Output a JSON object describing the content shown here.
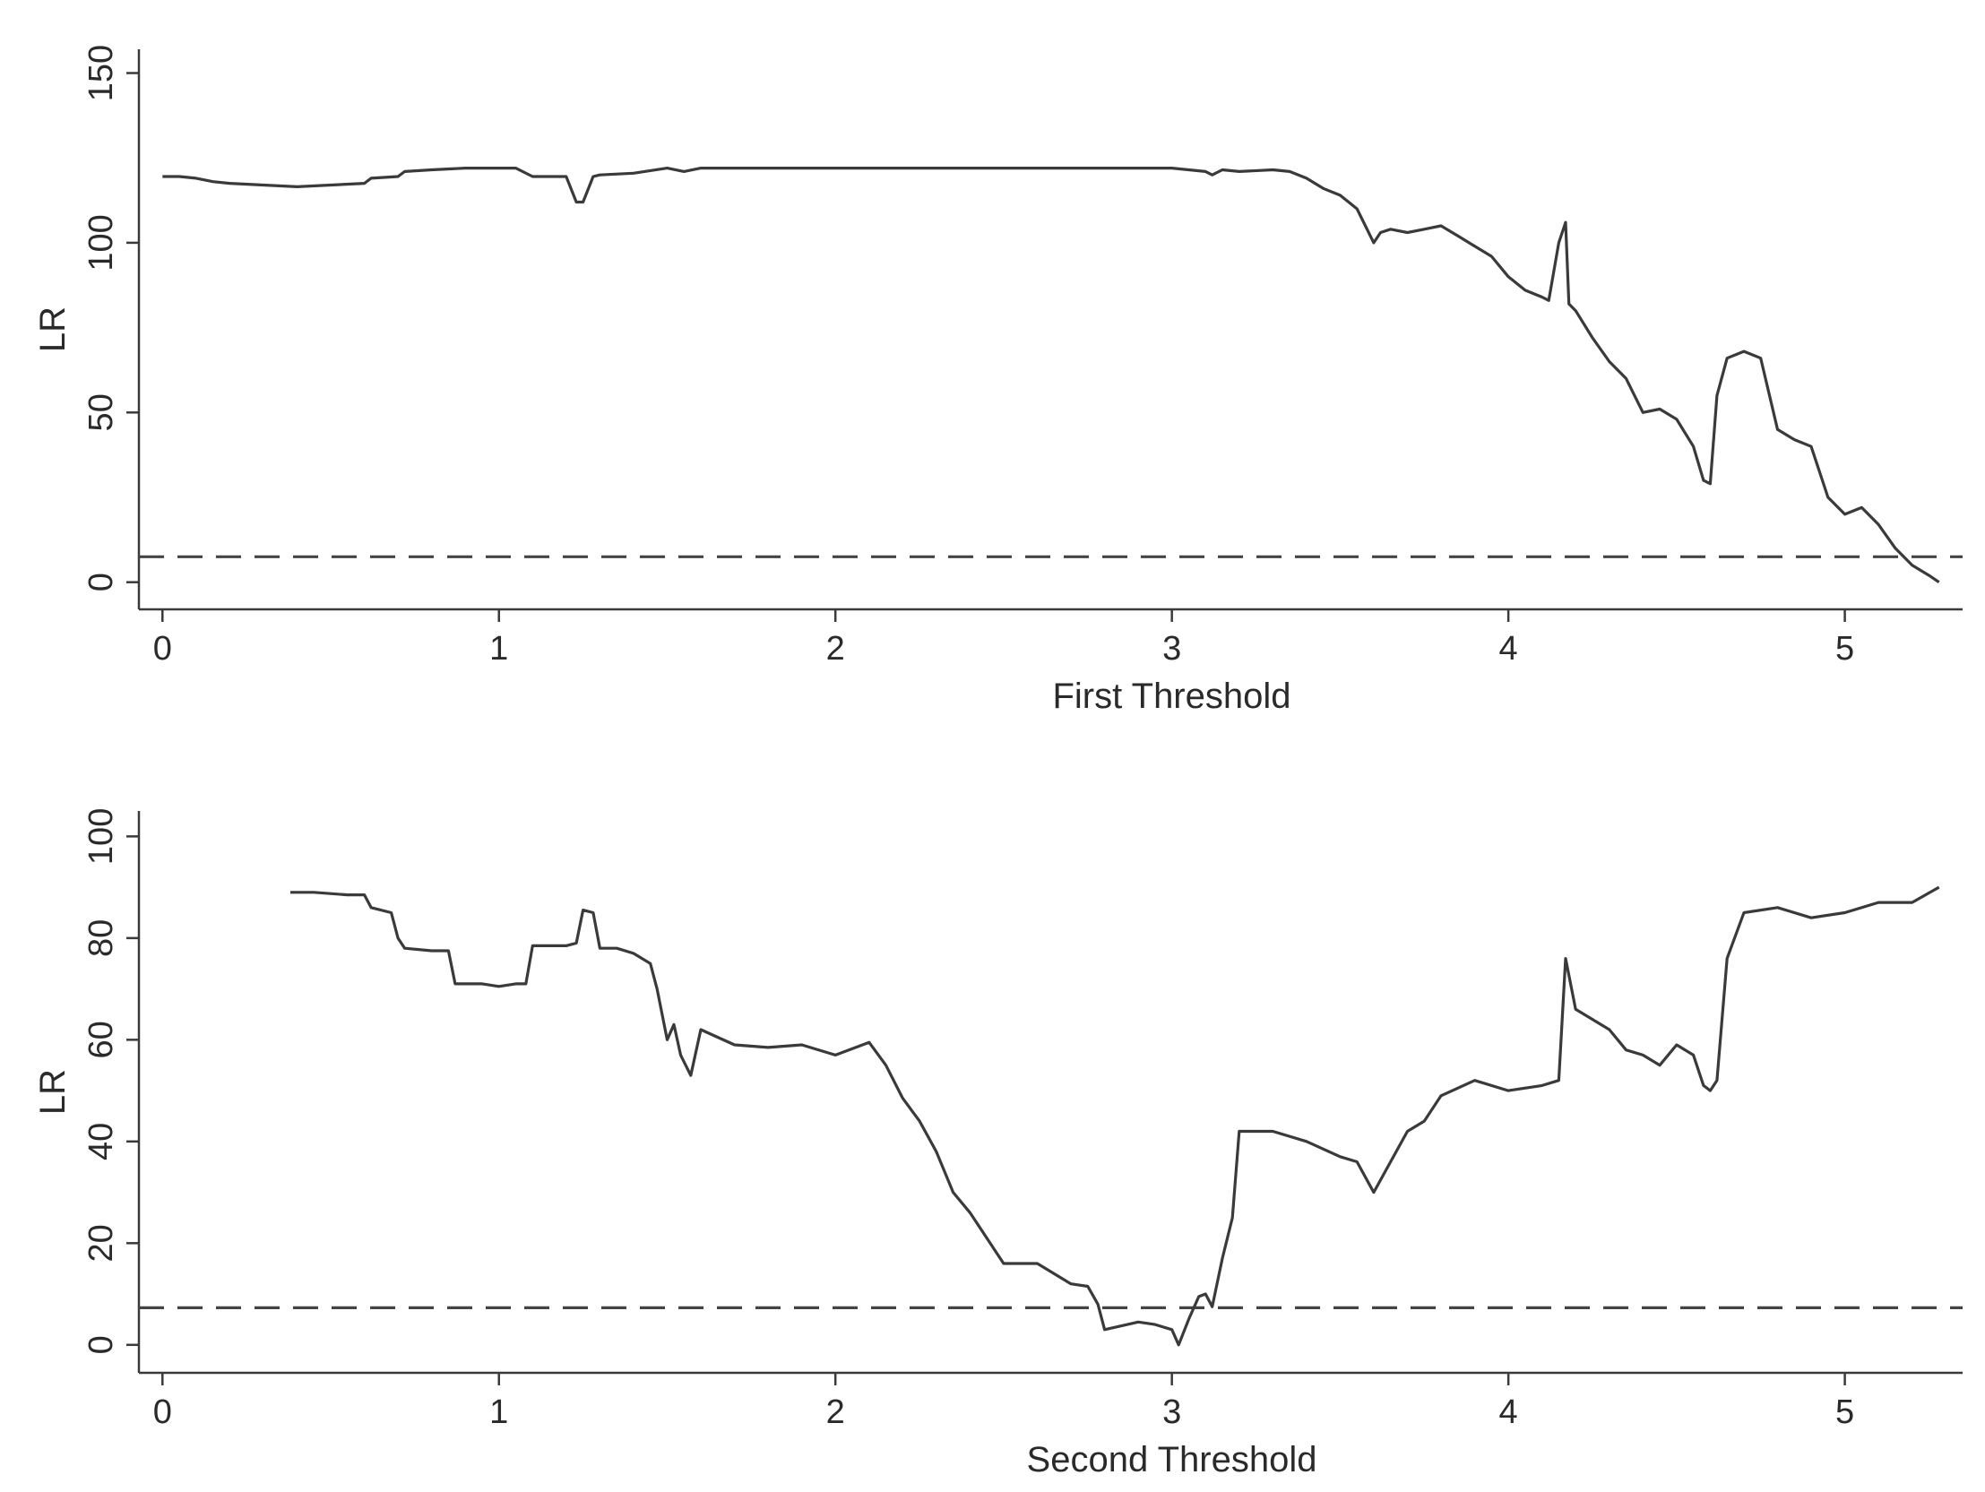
{
  "chart_data": [
    {
      "type": "line",
      "xlabel": "First Threshold",
      "ylabel": "LR",
      "xlim": [
        -0.07,
        5.35
      ],
      "ylim": [
        -8,
        157
      ],
      "xticks": [
        0,
        1,
        2,
        3,
        4,
        5
      ],
      "yticks": [
        0,
        50,
        100,
        150
      ],
      "critical_value": 7.5,
      "grid": false,
      "x": [
        0,
        0.05,
        0.1,
        0.15,
        0.2,
        0.3,
        0.4,
        0.5,
        0.6,
        0.62,
        0.7,
        0.72,
        0.8,
        0.9,
        1.0,
        1.05,
        1.1,
        1.2,
        1.23,
        1.25,
        1.28,
        1.3,
        1.4,
        1.5,
        1.55,
        1.6,
        2.0,
        2.5,
        3.0,
        3.1,
        3.12,
        3.15,
        3.2,
        3.3,
        3.35,
        3.4,
        3.45,
        3.5,
        3.55,
        3.6,
        3.62,
        3.65,
        3.7,
        3.75,
        3.8,
        3.85,
        3.9,
        3.95,
        4.0,
        4.05,
        4.1,
        4.12,
        4.15,
        4.17,
        4.18,
        4.2,
        4.25,
        4.3,
        4.35,
        4.4,
        4.45,
        4.5,
        4.55,
        4.58,
        4.6,
        4.62,
        4.65,
        4.7,
        4.75,
        4.8,
        4.85,
        4.9,
        4.95,
        5.0,
        5.05,
        5.1,
        5.15,
        5.2,
        5.25,
        5.28
      ],
      "values": [
        119.5,
        119.5,
        119,
        118,
        117.5,
        117,
        116.5,
        117,
        117.5,
        119,
        119.5,
        121,
        121.5,
        122,
        122,
        122,
        119.5,
        119.5,
        112,
        112,
        119.5,
        120,
        120.5,
        122,
        121,
        122,
        122,
        122,
        122,
        121,
        120,
        121.5,
        121,
        121.5,
        121,
        119,
        116,
        114,
        110,
        100,
        103,
        104,
        103,
        104,
        105,
        102,
        99,
        96,
        90,
        86,
        84,
        83,
        100,
        106,
        82,
        80,
        72,
        65,
        60,
        50,
        51,
        48,
        40,
        30,
        29,
        55,
        66,
        68,
        66,
        45,
        42,
        40,
        25,
        20,
        22,
        17,
        10,
        5,
        2,
        0
      ]
    },
    {
      "type": "line",
      "xlabel": "Second Threshold",
      "ylabel": "LR",
      "xlim": [
        -0.07,
        5.35
      ],
      "ylim": [
        -5.5,
        105
      ],
      "xticks": [
        0,
        1,
        2,
        3,
        4,
        5
      ],
      "yticks": [
        0,
        20,
        40,
        60,
        80,
        100
      ],
      "critical_value": 7.3,
      "grid": false,
      "x": [
        0.38,
        0.45,
        0.55,
        0.6,
        0.62,
        0.68,
        0.7,
        0.72,
        0.8,
        0.85,
        0.87,
        0.95,
        1.0,
        1.05,
        1.08,
        1.1,
        1.2,
        1.23,
        1.25,
        1.28,
        1.3,
        1.35,
        1.4,
        1.45,
        1.47,
        1.5,
        1.52,
        1.54,
        1.57,
        1.6,
        1.7,
        1.8,
        1.9,
        2.0,
        2.1,
        2.15,
        2.2,
        2.25,
        2.3,
        2.35,
        2.4,
        2.5,
        2.6,
        2.7,
        2.75,
        2.78,
        2.8,
        2.9,
        2.95,
        3.0,
        3.02,
        3.05,
        3.08,
        3.1,
        3.12,
        3.15,
        3.18,
        3.2,
        3.3,
        3.4,
        3.5,
        3.55,
        3.6,
        3.65,
        3.7,
        3.75,
        3.8,
        3.9,
        4.0,
        4.1,
        4.15,
        4.17,
        4.2,
        4.25,
        4.3,
        4.35,
        4.4,
        4.45,
        4.5,
        4.55,
        4.58,
        4.6,
        4.62,
        4.65,
        4.7,
        4.8,
        4.9,
        5.0,
        5.1,
        5.2,
        5.28
      ],
      "values": [
        89,
        89,
        88.5,
        88.5,
        86,
        85,
        80,
        78,
        77.5,
        77.5,
        71,
        71,
        70.5,
        71,
        71,
        78.5,
        78.5,
        79,
        85.5,
        85,
        78,
        78,
        77,
        75,
        70,
        60,
        63,
        57,
        53,
        62,
        59,
        58.5,
        59,
        57,
        59.5,
        55,
        48.5,
        44,
        38,
        30,
        26,
        16,
        16,
        12,
        11.5,
        8,
        3,
        4.5,
        4,
        3,
        0,
        5,
        9.5,
        10,
        7.5,
        17,
        25,
        42,
        42,
        40,
        37,
        36,
        30,
        36,
        42,
        44,
        49,
        52,
        50,
        51,
        52,
        76,
        66,
        64,
        62,
        58,
        57,
        55,
        59,
        57,
        51,
        50,
        52,
        76,
        85,
        86,
        84,
        85,
        87,
        87,
        90
      ]
    }
  ]
}
